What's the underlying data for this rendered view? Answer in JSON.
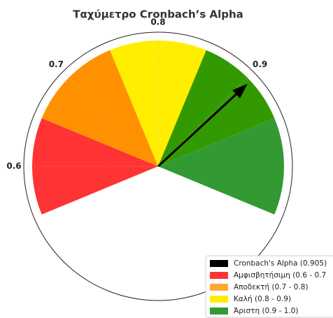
{
  "chart_data": {
    "type": "gauge",
    "title": "Ταχύμετρο Cronbach’s Alpha",
    "xlim": [
      0.6,
      1.0
    ],
    "xticks": [
      0.6,
      0.7,
      0.8,
      0.9
    ],
    "grid": true,
    "wedges": {
      "values": [
        0.6,
        0.7,
        0.8,
        0.9,
        1.0
      ],
      "width": 0.1,
      "colors": [
        "#ff3333",
        "#ff9100",
        "#ffee00",
        "#339900",
        "#339933"
      ]
    },
    "needle": {
      "value": 0.905,
      "color": "#000000"
    },
    "legend": {
      "position": "lower right",
      "entries": [
        {
          "name": "Cronbach's Alpha (0.905)",
          "color": "#000000"
        },
        {
          "name": "Αμφισβητήσιμη (0.6 - 0.7",
          "color": "#ff3333"
        },
        {
          "name": "Αποδεκτή (0.7 - 0.8)",
          "color": "#ffa733"
        },
        {
          "name": "Καλή (0.8 - 0.9)",
          "color": "#ffee00"
        },
        {
          "name": "Άριστη (0.9 - 1.0)",
          "color": "#339933"
        }
      ]
    }
  }
}
